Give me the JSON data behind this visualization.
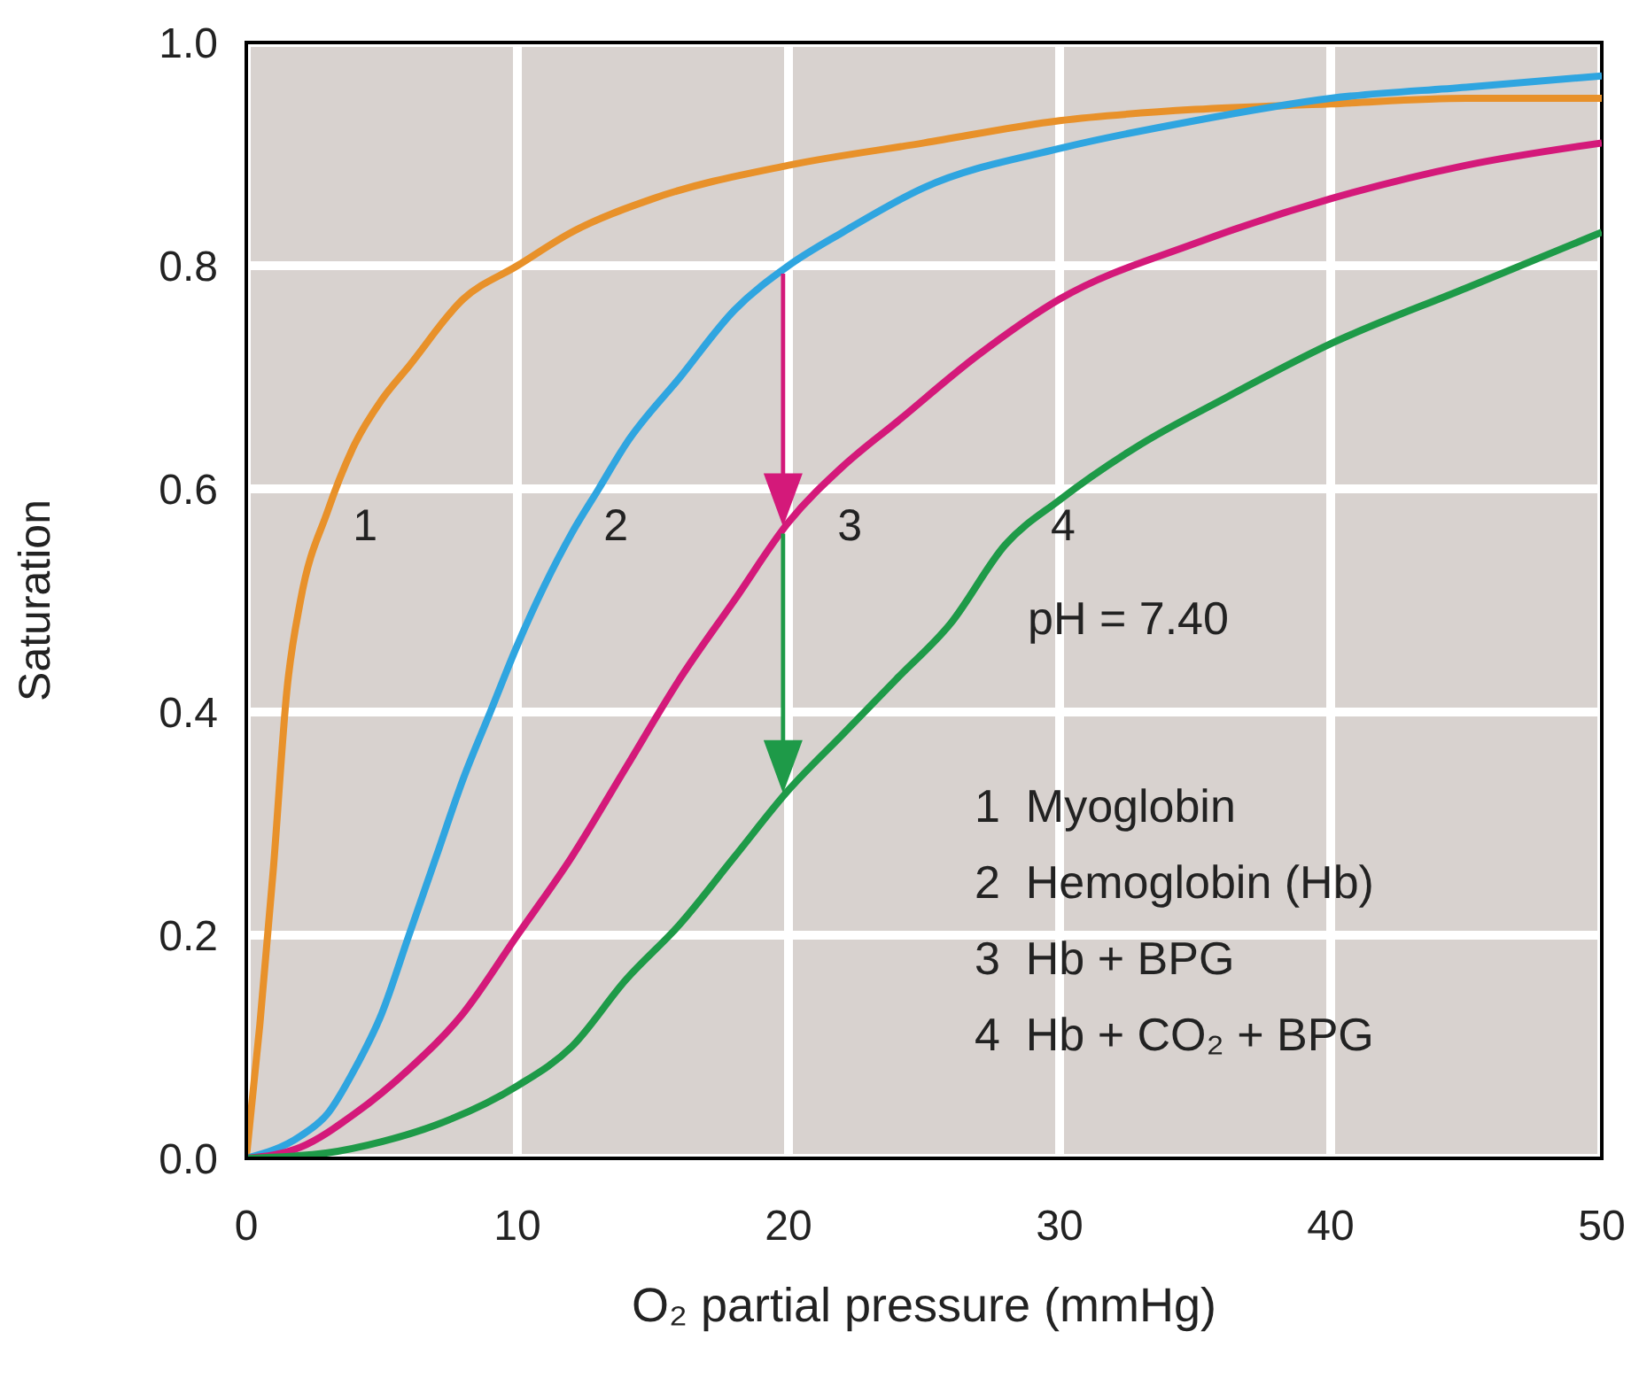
{
  "chart_data": {
    "type": "line",
    "xlabel": "O₂ partial pressure (mmHg)",
    "ylabel": "Saturation",
    "xlim": [
      0,
      50
    ],
    "xticks": [
      0,
      10,
      20,
      30,
      40,
      50
    ],
    "ylim": [
      0,
      1
    ],
    "yticks": [
      {
        "value": 0,
        "label": "0.0"
      },
      {
        "value": 0.2,
        "label": "0.2"
      },
      {
        "value": 0.4,
        "label": "0.4"
      },
      {
        "value": 0.6,
        "label": "0.6"
      },
      {
        "value": 0.8,
        "label": "0.8"
      },
      {
        "value": 1,
        "label": "1.0"
      }
    ],
    "grid": true,
    "annotations": [
      "pH = 7.40",
      "1  Myoglobin",
      "2  Hemoglobin (Hb)",
      "3  Hb + BPG",
      "4  Hb + CO₂ + BPG"
    ],
    "series": [
      {
        "name": "1",
        "color": "#e8912a",
        "x": [
          0,
          0.5,
          1,
          1.5,
          2,
          3,
          4,
          5,
          6,
          8,
          10,
          12,
          15,
          20,
          25,
          30,
          35,
          40,
          45,
          50
        ],
        "values": [
          0,
          0.12,
          0.26,
          0.42,
          0.5,
          0.58,
          0.64,
          0.68,
          0.71,
          0.77,
          0.8,
          0.83,
          0.86,
          0.89,
          0.91,
          0.93,
          0.94,
          0.945,
          0.95,
          0.95
        ]
      },
      {
        "name": "2",
        "color": "#2fa5e0",
        "x": [
          0,
          2,
          3,
          4,
          5,
          6,
          7,
          8,
          9,
          10,
          12,
          13,
          14,
          16,
          18,
          20,
          22,
          25,
          30,
          35,
          40,
          45,
          50
        ],
        "values": [
          0,
          0.02,
          0.04,
          0.08,
          0.13,
          0.2,
          0.27,
          0.34,
          0.4,
          0.46,
          0.56,
          0.6,
          0.64,
          0.7,
          0.76,
          0.8,
          0.83,
          0.87,
          0.905,
          0.93,
          0.95,
          0.96,
          0.97
        ]
      },
      {
        "name": "3",
        "color": "#d4197a",
        "x": [
          0,
          2,
          4,
          6,
          8,
          10,
          12,
          14,
          16,
          18,
          20,
          22,
          24,
          27,
          30,
          35,
          40,
          45,
          50
        ],
        "values": [
          0,
          0.01,
          0.04,
          0.08,
          0.13,
          0.2,
          0.27,
          0.35,
          0.43,
          0.5,
          0.57,
          0.62,
          0.66,
          0.72,
          0.77,
          0.82,
          0.86,
          0.89,
          0.91
        ]
      },
      {
        "name": "4",
        "color": "#1e9a48",
        "x": [
          0,
          3,
          5,
          7,
          10,
          12,
          14,
          16,
          18,
          20,
          22,
          24,
          26,
          28,
          30,
          33,
          36,
          40,
          45,
          50
        ],
        "values": [
          0,
          0.005,
          0.015,
          0.03,
          0.065,
          0.1,
          0.16,
          0.21,
          0.27,
          0.33,
          0.38,
          0.43,
          0.48,
          0.55,
          0.59,
          0.64,
          0.68,
          0.73,
          0.78,
          0.83
        ]
      }
    ]
  }
}
